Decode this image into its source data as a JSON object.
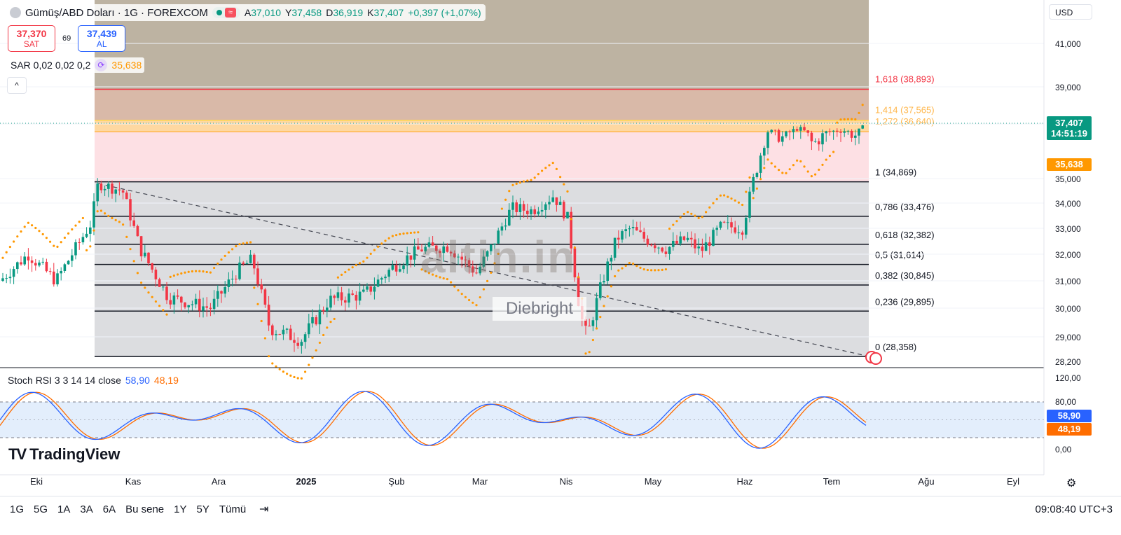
{
  "header": {
    "title": "Gümüş/ABD Doları · 1G · FOREXCOM",
    "ohlc": {
      "open_label": "A",
      "open": "37,010",
      "high_label": "Y",
      "high": "37,458",
      "low_label": "D",
      "low": "36,919",
      "close_label": "K",
      "close": "37,407",
      "change": "+0,397 (+1,07%)"
    },
    "wave_icon": "≈"
  },
  "trade": {
    "sell_value": "37,370",
    "sell_label": "SAT",
    "spread": "69",
    "buy_value": "37,439",
    "buy_label": "AL"
  },
  "sar": {
    "label": "SAR 0,02 0,02 0,2",
    "value": "35,638",
    "icon": "sync-icon"
  },
  "collapse_icon": "^",
  "currency": "USD",
  "price_axis": [
    "41,000",
    "39,000",
    "35,000",
    "34,000",
    "33,000",
    "32,000",
    "31,000",
    "30,000",
    "29,000",
    "28,200"
  ],
  "last_price": {
    "value": "37,407",
    "countdown": "14:51:19"
  },
  "sar_tag": "35,638",
  "fib_levels": [
    {
      "ratio": "1,618",
      "price": "(38,893)",
      "value": 38.893,
      "color": "#f23645"
    },
    {
      "ratio": "1,414",
      "price": "(37,565)",
      "value": 37.565,
      "color": "#ffd54f"
    },
    {
      "ratio": "1,272",
      "price": "(36,640)",
      "value": 36.64,
      "color": "#ffb74d"
    },
    {
      "ratio": "1",
      "price": "(34,869)",
      "value": 34.869,
      "color": "#131722"
    },
    {
      "ratio": "0,786",
      "price": "(33,476)",
      "value": 33.476,
      "color": "#131722"
    },
    {
      "ratio": "0,618",
      "price": "(32,382)",
      "value": 32.382,
      "color": "#131722"
    },
    {
      "ratio": "0,5",
      "price": "(31,614)",
      "value": 31.614,
      "color": "#131722"
    },
    {
      "ratio": "0,382",
      "price": "(30,845)",
      "value": 30.845,
      "color": "#131722"
    },
    {
      "ratio": "0,236",
      "price": "(29,895)",
      "value": 29.895,
      "color": "#131722"
    },
    {
      "ratio": "0",
      "price": "(28,358)",
      "value": 28.358,
      "color": "#131722"
    }
  ],
  "stoch": {
    "label": "Stoch RSI 3 3 14 14 close",
    "k": "58,90",
    "d": "48,19",
    "axis": [
      "120,00",
      "80,00",
      "0,00"
    ]
  },
  "watermark": {
    "brand": "altin.in",
    "author": "Diebright"
  },
  "months": [
    "Eki",
    "Kas",
    "Ara",
    "2025",
    "Şub",
    "Mar",
    "Nis",
    "May",
    "Haz",
    "Tem",
    "Ağu",
    "Eyl"
  ],
  "brand": "TradingView",
  "ranges": [
    "1G",
    "5G",
    "1A",
    "3A",
    "6A",
    "Bu sene",
    "1Y",
    "5Y",
    "Tümü"
  ],
  "clock": "09:08:40 UTC+3",
  "colors": {
    "up": "#089981",
    "down": "#f23645",
    "sar": "#ff9800",
    "k": "#2962ff",
    "d": "#ff6d00"
  }
}
